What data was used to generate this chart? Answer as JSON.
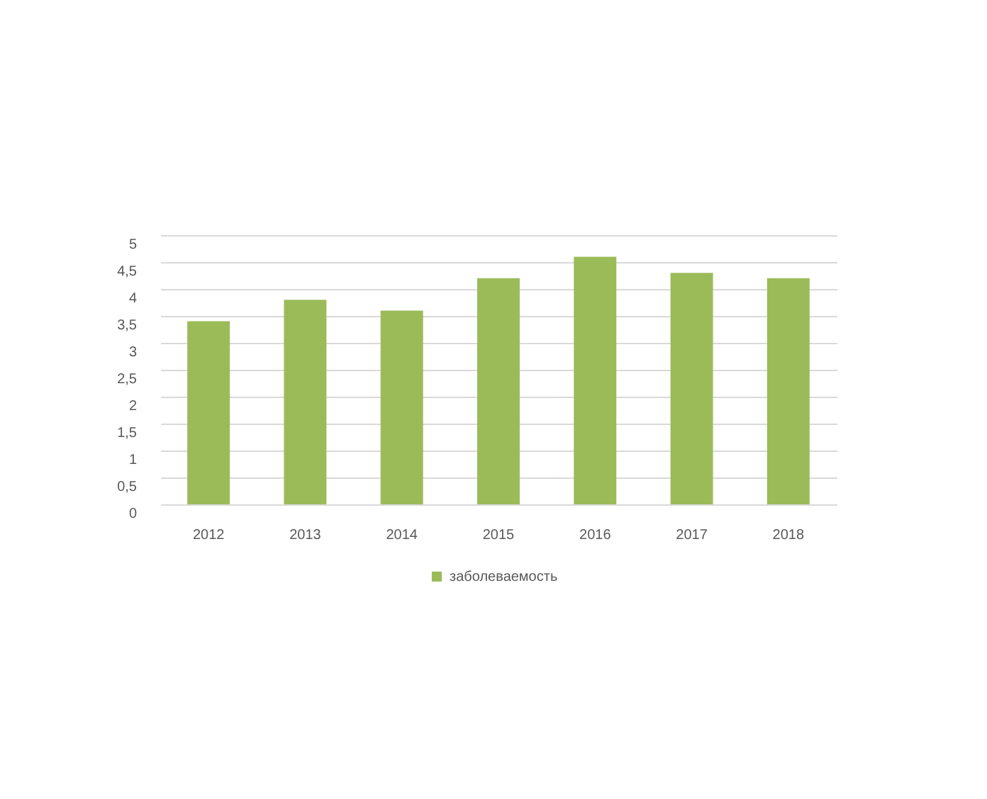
{
  "chart_data": {
    "type": "bar",
    "categories": [
      "2012",
      "2013",
      "2014",
      "2015",
      "2016",
      "2017",
      "2018"
    ],
    "series": [
      {
        "name": "заболеваемость",
        "color": "#9bbb59",
        "values": [
          3.4,
          3.8,
          3.6,
          4.2,
          4.6,
          4.3,
          4.2
        ]
      }
    ],
    "ylim": [
      0,
      5
    ],
    "yticks": [
      0,
      {
        "value": 0.5,
        "label": "0,5"
      },
      1,
      {
        "value": 1.5,
        "label": "1,5"
      },
      2,
      {
        "value": 2.5,
        "label": "2,5"
      },
      3,
      {
        "value": 3.5,
        "label": "3,5"
      },
      4,
      {
        "value": 4.5,
        "label": "4,5"
      },
      5
    ],
    "grid": "y",
    "legend": "bottom"
  }
}
